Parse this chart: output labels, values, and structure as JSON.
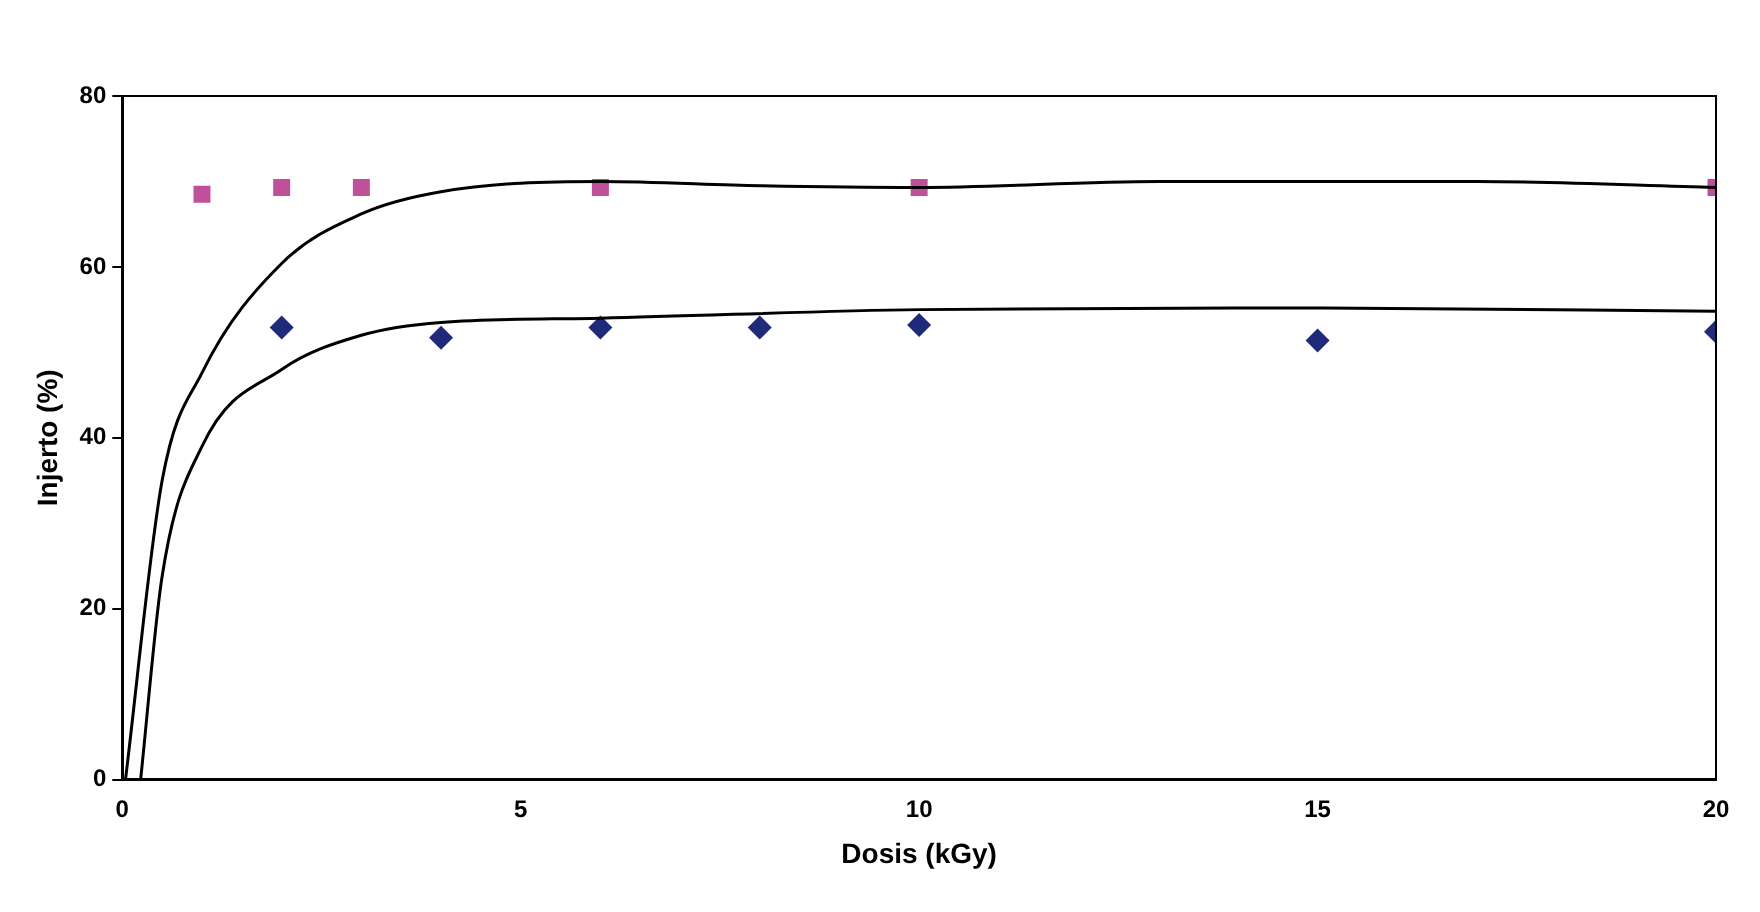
{
  "chart_data": {
    "type": "scatter",
    "xlabel": "Dosis (kGy)",
    "ylabel": "Injerto (%)",
    "xlim": [
      0,
      20
    ],
    "xticks": [
      0,
      5,
      10,
      15,
      20
    ],
    "ylim": [
      0,
      80
    ],
    "yticks": [
      0,
      20,
      40,
      60,
      80
    ],
    "grid": false,
    "legend": false,
    "series": [
      {
        "marker": "square",
        "color": "#c0509c",
        "x": [
          1,
          2,
          3,
          6,
          10,
          20
        ],
        "values": [
          68.5,
          69.3,
          69.3,
          69.3,
          69.3,
          69.3
        ]
      },
      {
        "marker": "diamond",
        "color": "#1f2a7a",
        "x": [
          2,
          4,
          6,
          8,
          10,
          15,
          20
        ],
        "values": [
          52.9,
          51.7,
          52.9,
          52.9,
          53.2,
          51.4,
          52.4
        ]
      },
      {
        "type": "line",
        "marker": "none",
        "color": "#000000",
        "x": [
          0.04,
          0.5,
          1,
          2,
          3,
          4,
          6,
          8,
          10,
          13,
          17,
          20
        ],
        "values": [
          0,
          35,
          47.6,
          60.4,
          66.2,
          68.8,
          70,
          69.5,
          69.3,
          70,
          70,
          69.3
        ]
      },
      {
        "type": "line",
        "marker": "none",
        "color": "#000000",
        "x": [
          0.23,
          0.5,
          1,
          2,
          3,
          4,
          6,
          10,
          15,
          20
        ],
        "values": [
          0,
          23.8,
          39,
          48,
          52,
          53.5,
          54,
          55,
          55.2,
          54.8
        ]
      }
    ]
  }
}
